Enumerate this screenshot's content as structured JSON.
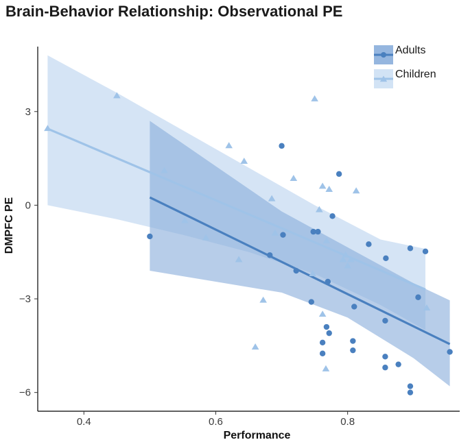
{
  "chart_data": {
    "type": "scatter",
    "title": "Brain-Behavior Relationship: Observational PE",
    "xlabel": "Performance",
    "ylabel": "DMPFC PE",
    "xlim": [
      0.33,
      0.97
    ],
    "ylim": [
      -6.6,
      5.3
    ],
    "xticks": [
      0.4,
      0.6,
      0.8
    ],
    "xtick_labels": [
      "0.4",
      "0.6",
      "0.8"
    ],
    "yticks": [
      3,
      0,
      -3,
      -6
    ],
    "ytick_labels": [
      "3",
      "0",
      "−3",
      "−6"
    ],
    "grid": false,
    "legend": "top-right",
    "series": [
      {
        "name": "Adults",
        "marker": "circle",
        "color": "#4a80bf",
        "band_color": "#8aaedb",
        "fit": {
          "x": [
            0.5,
            0.955
          ],
          "y": [
            0.25,
            -4.45
          ]
        },
        "band": {
          "x": [
            0.5,
            0.6,
            0.7,
            0.8,
            0.9,
            0.955
          ],
          "upper": [
            2.7,
            1.25,
            -0.2,
            -1.35,
            -2.5,
            -3.05
          ],
          "lower": [
            -2.1,
            -2.45,
            -2.8,
            -3.6,
            -4.9,
            -5.8
          ]
        },
        "points": [
          {
            "x": 0.5,
            "y": -1.0
          },
          {
            "x": 0.7,
            "y": 1.9
          },
          {
            "x": 0.787,
            "y": 1.0
          },
          {
            "x": 0.777,
            "y": -0.35
          },
          {
            "x": 0.702,
            "y": -0.95
          },
          {
            "x": 0.748,
            "y": -0.85
          },
          {
            "x": 0.755,
            "y": -0.85
          },
          {
            "x": 0.832,
            "y": -1.25
          },
          {
            "x": 0.858,
            "y": -1.7
          },
          {
            "x": 0.895,
            "y": -1.38
          },
          {
            "x": 0.918,
            "y": -1.48
          },
          {
            "x": 0.682,
            "y": -1.6
          },
          {
            "x": 0.722,
            "y": -2.1
          },
          {
            "x": 0.77,
            "y": -2.45
          },
          {
            "x": 0.745,
            "y": -3.1
          },
          {
            "x": 0.81,
            "y": -3.25
          },
          {
            "x": 0.907,
            "y": -2.95
          },
          {
            "x": 0.857,
            "y": -3.7
          },
          {
            "x": 0.768,
            "y": -3.9
          },
          {
            "x": 0.772,
            "y": -4.1
          },
          {
            "x": 0.808,
            "y": -4.35
          },
          {
            "x": 0.762,
            "y": -4.4
          },
          {
            "x": 0.808,
            "y": -4.65
          },
          {
            "x": 0.762,
            "y": -4.75
          },
          {
            "x": 0.955,
            "y": -4.7
          },
          {
            "x": 0.857,
            "y": -4.85
          },
          {
            "x": 0.877,
            "y": -5.1
          },
          {
            "x": 0.857,
            "y": -5.2
          },
          {
            "x": 0.895,
            "y": -5.8
          },
          {
            "x": 0.895,
            "y": -6.0
          }
        ]
      },
      {
        "name": "Children",
        "marker": "triangle",
        "color": "#9fc3e8",
        "band_color": "#c3d9f1",
        "fit": {
          "x": [
            0.345,
            0.918
          ],
          "y": [
            2.45,
            -2.7
          ]
        },
        "band": {
          "x": [
            0.345,
            0.45,
            0.55,
            0.65,
            0.75,
            0.85,
            0.918
          ],
          "upper": [
            4.8,
            3.6,
            2.4,
            1.2,
            0.0,
            -1.1,
            -1.4
          ],
          "lower": [
            0.0,
            -0.45,
            -0.95,
            -1.5,
            -2.2,
            -3.2,
            -4.0
          ]
        },
        "points": [
          {
            "x": 0.345,
            "y": 2.45
          },
          {
            "x": 0.45,
            "y": 3.5
          },
          {
            "x": 0.75,
            "y": 3.4
          },
          {
            "x": 0.522,
            "y": 1.1
          },
          {
            "x": 0.62,
            "y": 1.9
          },
          {
            "x": 0.643,
            "y": 1.4
          },
          {
            "x": 0.718,
            "y": 0.85
          },
          {
            "x": 0.762,
            "y": 0.6
          },
          {
            "x": 0.772,
            "y": 0.5
          },
          {
            "x": 0.813,
            "y": 0.45
          },
          {
            "x": 0.685,
            "y": 0.2
          },
          {
            "x": 0.757,
            "y": -0.15
          },
          {
            "x": 0.553,
            "y": -0.5
          },
          {
            "x": 0.69,
            "y": -0.9
          },
          {
            "x": 0.585,
            "y": -1.05
          },
          {
            "x": 0.768,
            "y": -1.15
          },
          {
            "x": 0.635,
            "y": -1.75
          },
          {
            "x": 0.797,
            "y": -1.6
          },
          {
            "x": 0.793,
            "y": -1.75
          },
          {
            "x": 0.805,
            "y": -1.75
          },
          {
            "x": 0.8,
            "y": -1.95
          },
          {
            "x": 0.747,
            "y": -2.2
          },
          {
            "x": 0.672,
            "y": -3.05
          },
          {
            "x": 0.762,
            "y": -3.5
          },
          {
            "x": 0.92,
            "y": -3.3
          },
          {
            "x": 0.66,
            "y": -4.55
          },
          {
            "x": 0.767,
            "y": -5.25
          }
        ]
      }
    ]
  }
}
